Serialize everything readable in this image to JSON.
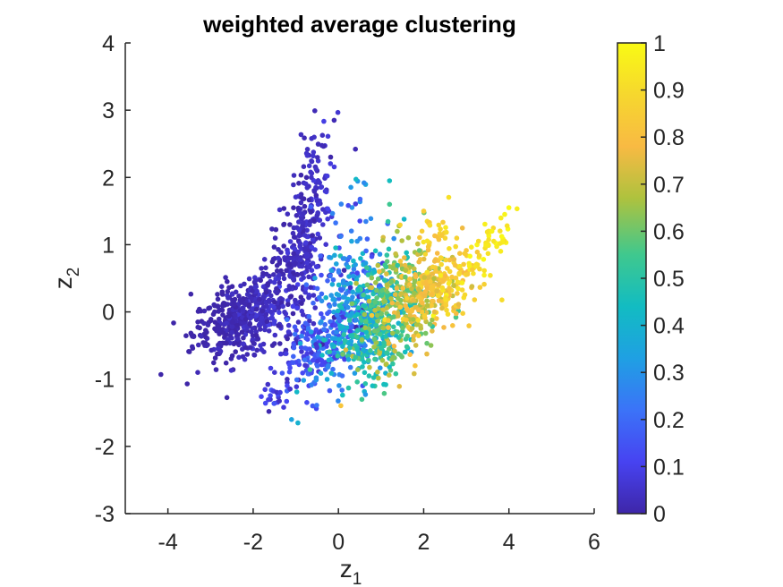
{
  "chart_data": {
    "type": "scatter",
    "title": "weighted average clustering",
    "xlabel": "z",
    "xlabel_subscript": "1",
    "ylabel": "z",
    "ylabel_subscript": "2",
    "xlim": [
      -5,
      6
    ],
    "ylim": [
      -3,
      4
    ],
    "xticks": [
      -4,
      -2,
      0,
      2,
      4,
      6
    ],
    "xtick_labels": [
      "-4",
      "-2",
      "0",
      "2",
      "4",
      "6"
    ],
    "yticks": [
      -3,
      -2,
      -1,
      0,
      1,
      2,
      3,
      4
    ],
    "ytick_labels": [
      "-3",
      "-2",
      "-1",
      "0",
      "1",
      "2",
      "3",
      "4"
    ],
    "grid": false,
    "colorbar": {
      "colormap": "parula",
      "range": [
        0,
        1
      ],
      "ticks": [
        0,
        0.1,
        0.2,
        0.3,
        0.4,
        0.5,
        0.6,
        0.7,
        0.8,
        0.9,
        1
      ],
      "tick_labels": [
        "0",
        "0.1",
        "0.2",
        "0.3",
        "0.4",
        "0.5",
        "0.6",
        "0.7",
        "0.8",
        "0.9",
        "1"
      ],
      "placement": "right"
    },
    "colors": {
      "c0": "#3E26A8",
      "c1": "#4743F1",
      "c2": "#3B73F8",
      "c3": "#1FA0E3",
      "c4": "#12BCC2",
      "c5": "#3FC88E",
      "c6": "#AEC23E",
      "c7": "#F8BA43",
      "c8": "#F6D72E",
      "c9": "#F9FA14"
    },
    "point_groups": [
      {
        "x": -2.3,
        "y": -0.1,
        "sx": 0.55,
        "sy": 0.3,
        "rho": 0.4,
        "n": 420,
        "c": 0.02,
        "cs": 0.02
      },
      {
        "x": -0.8,
        "y": 1.2,
        "sx": 0.3,
        "sy": 0.75,
        "rho": 0.5,
        "n": 280,
        "c": 0.03,
        "cs": 0.02
      },
      {
        "x": -1.3,
        "y": 0.5,
        "sx": 0.45,
        "sy": 0.35,
        "rho": 0.5,
        "n": 90,
        "c": 0.03,
        "cs": 0.02
      },
      {
        "x": -0.6,
        "y": -0.6,
        "sx": 0.4,
        "sy": 0.35,
        "rho": 0.3,
        "n": 130,
        "c": 0.12,
        "cs": 0.05
      },
      {
        "x": 0.3,
        "y": -0.1,
        "sx": 0.5,
        "sy": 0.45,
        "rho": 0.4,
        "n": 380,
        "c": 0.28,
        "cs": 0.12
      },
      {
        "x": 0.2,
        "y": 1.1,
        "sx": 0.35,
        "sy": 0.45,
        "rho": 0.2,
        "n": 50,
        "c": 0.25,
        "cs": 0.08
      },
      {
        "x": 1.0,
        "y": -0.2,
        "sx": 0.45,
        "sy": 0.45,
        "rho": 0.4,
        "n": 300,
        "c": 0.5,
        "cs": 0.1
      },
      {
        "x": 1.6,
        "y": 0.2,
        "sx": 0.5,
        "sy": 0.45,
        "rho": 0.3,
        "n": 260,
        "c": 0.68,
        "cs": 0.08
      },
      {
        "x": 2.4,
        "y": 0.35,
        "sx": 0.45,
        "sy": 0.25,
        "rho": 0.3,
        "n": 180,
        "c": 0.82,
        "cs": 0.06
      },
      {
        "x": 2.3,
        "y": 1.15,
        "sx": 0.35,
        "sy": 0.2,
        "rho": 0.0,
        "n": 30,
        "c": 0.86,
        "cs": 0.05
      },
      {
        "x": 3.4,
        "y": 0.9,
        "sx": 0.35,
        "sy": 0.3,
        "rho": 0.8,
        "n": 50,
        "c": 0.93,
        "cs": 0.04
      },
      {
        "x": -1.5,
        "y": -1.3,
        "sx": 0.2,
        "sy": 0.12,
        "rho": 0.0,
        "n": 20,
        "c": 0.08,
        "cs": 0.04
      }
    ],
    "highlight_points": [
      {
        "x": -0.1,
        "y": 2.85,
        "c": 0.02
      },
      {
        "x": 0.4,
        "y": 2.42,
        "c": 0.02
      },
      {
        "x": 0.6,
        "y": 1.92,
        "c": 0.28
      },
      {
        "x": 1.2,
        "y": 1.95,
        "c": 0.45
      },
      {
        "x": 1.2,
        "y": 1.6,
        "c": 0.55
      },
      {
        "x": 4.0,
        "y": 1.55,
        "c": 1.0
      },
      {
        "x": 3.9,
        "y": 1.45,
        "c": 0.98
      },
      {
        "x": 3.6,
        "y": 1.2,
        "c": 0.97
      },
      {
        "x": -3.3,
        "y": -0.9,
        "c": 0.02
      },
      {
        "x": -1.1,
        "y": -1.6,
        "c": 0.35
      },
      {
        "x": -0.95,
        "y": -1.65,
        "c": 0.4
      },
      {
        "x": 0.55,
        "y": -1.3,
        "c": 0.55
      },
      {
        "x": 0.8,
        "y": -1.1,
        "c": 0.45
      },
      {
        "x": 2.0,
        "y": 1.5,
        "c": 0.85
      },
      {
        "x": 1.8,
        "y": -0.8,
        "c": 0.82
      }
    ]
  }
}
